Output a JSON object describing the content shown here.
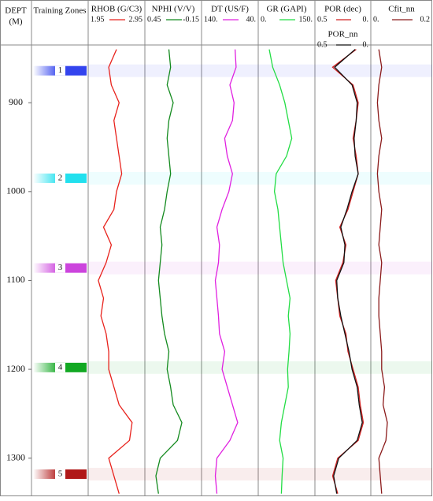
{
  "chart_data": {
    "type": "well-log",
    "depth_title": "DEPT",
    "depth_unit": "(M)",
    "ylim": [
      835,
      1342
    ],
    "yticks": [
      900,
      1000,
      1100,
      1200,
      1300
    ],
    "depth": [
      840,
      860,
      880,
      900,
      920,
      940,
      960,
      980,
      1000,
      1020,
      1040,
      1060,
      1080,
      1100,
      1120,
      1140,
      1160,
      1180,
      1200,
      1220,
      1240,
      1260,
      1280,
      1300,
      1320,
      1340
    ],
    "zones_title": "Training Zones",
    "zones": [
      {
        "label": "1",
        "depth": 864,
        "color": "#3344ee"
      },
      {
        "label": "2",
        "depth": 985,
        "color": "#22e0ee"
      },
      {
        "label": "3",
        "depth": 1086,
        "color": "#cc44dd"
      },
      {
        "label": "4",
        "depth": 1198,
        "color": "#11a822"
      },
      {
        "label": "5",
        "depth": 1318,
        "color": "#b01818"
      }
    ],
    "tracks": [
      {
        "series": [
          {
            "name": "RHOB (G/C3)",
            "color": "#e8221c",
            "xlim": [
              1.95,
              2.95
            ],
            "values": [
              2.45,
              2.3,
              2.35,
              2.5,
              2.4,
              2.45,
              2.5,
              2.55,
              2.45,
              2.4,
              2.2,
              2.35,
              2.25,
              2.1,
              2.2,
              2.15,
              2.25,
              2.3,
              2.3,
              2.4,
              2.5,
              2.75,
              2.7,
              2.3,
              2.4,
              2.5
            ]
          }
        ]
      },
      {
        "series": [
          {
            "name": "NPHI (V/V)",
            "color": "#138a1e",
            "xlim": [
              0.45,
              -0.15
            ],
            "values": [
              0.2,
              0.18,
              0.22,
              0.15,
              0.2,
              0.22,
              0.2,
              0.18,
              0.22,
              0.25,
              0.3,
              0.28,
              0.3,
              0.32,
              0.3,
              0.28,
              0.25,
              0.2,
              0.22,
              0.18,
              0.15,
              0.05,
              0.1,
              0.3,
              0.35,
              0.32
            ]
          }
        ]
      },
      {
        "series": [
          {
            "name": "DT (US/F)",
            "color": "#e020e0",
            "xlim": [
              {
                "value": 140,
                "label": "140."
              },
              {
                "value": 40,
                "label": "40."
              }
            ],
            "values": [
              80,
              78,
              90,
              82,
              85,
              100,
              95,
              85,
              92,
              105,
              115,
              110,
              112,
              118,
              115,
              112,
              110,
              100,
              105,
              95,
              85,
              75,
              90,
              115,
              118,
              115
            ]
          }
        ]
      },
      {
        "series": [
          {
            "name": "GR (GAPI)",
            "color": "#22dd44",
            "xlim": [
              {
                "value": 0,
                "label": "0."
              },
              {
                "value": 150,
                "label": "150."
              }
            ],
            "values": [
              25,
              35,
              55,
              70,
              80,
              90,
              75,
              45,
              40,
              50,
              55,
              60,
              65,
              75,
              85,
              80,
              85,
              82,
              78,
              80,
              70,
              60,
              55,
              65,
              62,
              60
            ]
          }
        ]
      },
      {
        "series": [
          {
            "name": "POR (dec)",
            "color": "#d02020",
            "xlim": [
              0.5,
              {
                "value": 0,
                "label": "0."
              }
            ],
            "values": [
              0.12,
              0.35,
              0.15,
              0.1,
              0.12,
              0.15,
              0.12,
              0.1,
              0.15,
              0.2,
              0.28,
              0.22,
              0.25,
              0.32,
              0.3,
              0.28,
              0.22,
              0.2,
              0.15,
              0.1,
              0.08,
              0.05,
              0.1,
              0.3,
              0.35,
              0.3
            ]
          },
          {
            "name": "POR_nn",
            "color": "#111111",
            "xlim": [
              0.5,
              {
                "value": 0,
                "label": "0."
              }
            ],
            "values": [
              0.13,
              0.33,
              0.16,
              0.11,
              0.12,
              0.14,
              0.13,
              0.1,
              0.16,
              0.21,
              0.27,
              0.23,
              0.24,
              0.31,
              0.3,
              0.27,
              0.23,
              0.19,
              0.16,
              0.11,
              0.09,
              0.06,
              0.11,
              0.29,
              0.34,
              0.31
            ]
          }
        ]
      },
      {
        "series": [
          {
            "name": "Cfit_nn",
            "color": "#8b1a1a",
            "xlim": [
              {
                "value": 0,
                "label": "0."
              },
              0.2
            ],
            "values": [
              0.02,
              0.03,
              0.02,
              0.015,
              0.02,
              0.03,
              0.02,
              0.015,
              0.02,
              0.03,
              0.025,
              0.02,
              0.03,
              0.025,
              0.02,
              0.02,
              0.025,
              0.03,
              0.03,
              0.04,
              0.035,
              0.05,
              0.045,
              0.02,
              0.025,
              0.03
            ]
          }
        ]
      }
    ]
  }
}
